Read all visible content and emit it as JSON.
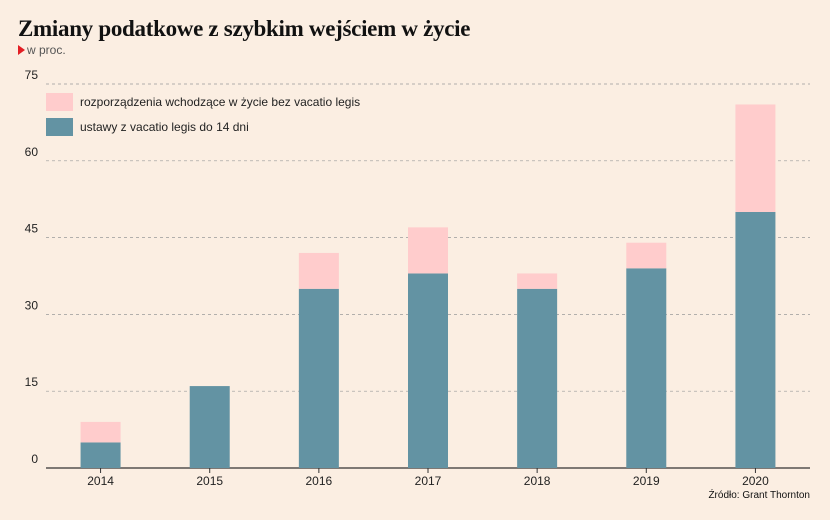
{
  "title": "Zmiany podatkowe z szybkim wejściem w życie",
  "subtitle": "w proc.",
  "source": "Źródło: Grant Thornton",
  "colors": {
    "pink": "#ffcccc",
    "teal": "#6393a3",
    "grid": "#9a9a9a",
    "marker": "#e31e24"
  },
  "chart_data": {
    "type": "bar",
    "stacked": true,
    "categories": [
      "2014",
      "2015",
      "2016",
      "2017",
      "2018",
      "2019",
      "2020"
    ],
    "series": [
      {
        "name": "ustawy z vacatio legis do 14 dni",
        "values": [
          5,
          16,
          35,
          38,
          35,
          39,
          50
        ],
        "color": "#6393a3"
      },
      {
        "name": "rozporządzenia wchodzące w życie bez vacatio legis",
        "values": [
          4,
          0,
          7,
          9,
          3,
          5,
          21
        ],
        "color": "#ffcccc"
      }
    ],
    "legend": [
      {
        "label": "rozporządzenia wchodzące w życie bez vacatio legis",
        "color": "#ffcccc"
      },
      {
        "label": "ustawy z vacatio legis do 14 dni",
        "color": "#6393a3"
      }
    ],
    "yticks": [
      "0",
      "15",
      "30",
      "45",
      "60",
      "75"
    ],
    "ylim": [
      0,
      75
    ],
    "grid": true,
    "legend_position": "top-left"
  }
}
